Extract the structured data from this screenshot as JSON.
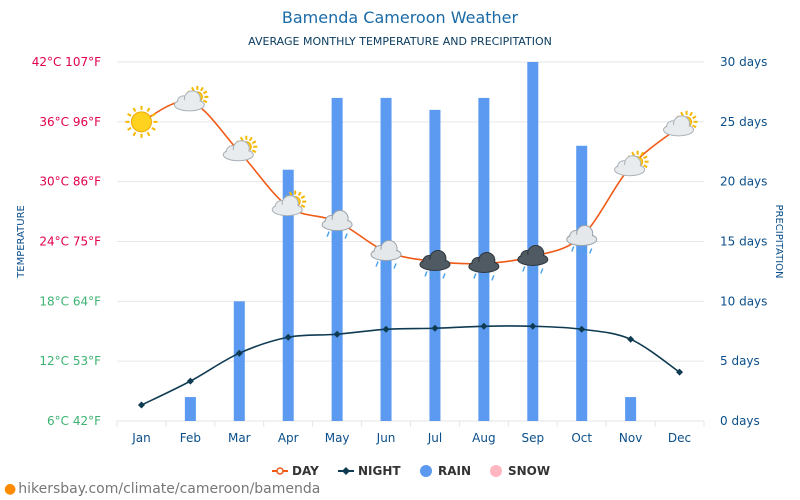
{
  "header": {
    "title": "Bamenda Cameroon Weather",
    "subtitle": "AVERAGE MONTHLY TEMPERATURE AND PRECIPITATION"
  },
  "footer": {
    "url": "hikersbay.com/climate/cameroon/bamenda"
  },
  "colors": {
    "day": "#f05a15",
    "night": "#0f3b52",
    "rain": "#5b9af0",
    "snow": "#ffb6c1",
    "grid": "#e6e6e6",
    "left_axis_hot": "#e0004d",
    "left_axis_cool": "#3cb371",
    "right_axis": "#0b4f8a"
  },
  "chart_data": {
    "type": "bar",
    "title": "Bamenda Cameroon Weather",
    "subtitle": "AVERAGE MONTHLY TEMPERATURE AND PRECIPITATION",
    "categories": [
      "Jan",
      "Feb",
      "Mar",
      "Apr",
      "May",
      "Jun",
      "Jul",
      "Aug",
      "Sep",
      "Oct",
      "Nov",
      "Dec"
    ],
    "y_left": {
      "label": "TEMPERATURE",
      "range_c": [
        6,
        42
      ],
      "ticks": [
        "42°C 107°F",
        "36°C 96°F",
        "30°C 86°F",
        "24°C 75°F",
        "18°C 64°F",
        "12°C 53°F",
        "6°C 42°F"
      ],
      "tick_values_c": [
        42,
        36,
        30,
        24,
        18,
        12,
        6
      ]
    },
    "y_right": {
      "label": "PRECIPITATION",
      "range_days": [
        0,
        30
      ],
      "ticks": [
        "30 days",
        "25 days",
        "20 days",
        "15 days",
        "10 days",
        "5 days",
        "0 days"
      ],
      "tick_values": [
        30,
        25,
        20,
        15,
        10,
        5,
        0
      ]
    },
    "series": [
      {
        "name": "DAY",
        "type": "line",
        "axis": "left",
        "values": [
          36,
          38,
          33,
          27.5,
          26,
          23,
          22,
          21.8,
          22.5,
          24.5,
          31.5,
          35.5
        ]
      },
      {
        "name": "NIGHT",
        "type": "line",
        "axis": "left",
        "values": [
          7.6,
          10,
          12.8,
          14.4,
          14.7,
          15.2,
          15.3,
          15.5,
          15.5,
          15.2,
          14.2,
          10.9
        ]
      },
      {
        "name": "RAIN",
        "type": "bar",
        "axis": "right",
        "values": [
          0,
          2,
          10,
          21,
          27,
          27,
          26,
          27,
          30,
          23,
          2,
          0
        ]
      },
      {
        "name": "SNOW",
        "type": "bar",
        "axis": "right",
        "values": [
          0,
          0,
          0,
          0,
          0,
          0,
          0,
          0,
          0,
          0,
          0,
          0
        ]
      }
    ],
    "weather_icons": [
      "sun-icon",
      "partly-cloudy-icon",
      "partly-cloudy-icon",
      "partly-cloudy-icon",
      "rain-cloud-icon",
      "rain-cloud-icon",
      "storm-cloud-icon",
      "storm-cloud-icon",
      "storm-cloud-icon",
      "rain-cloud-icon",
      "partly-cloudy-icon",
      "partly-cloudy-icon"
    ],
    "grid": true,
    "legend_position": "bottom-center"
  }
}
